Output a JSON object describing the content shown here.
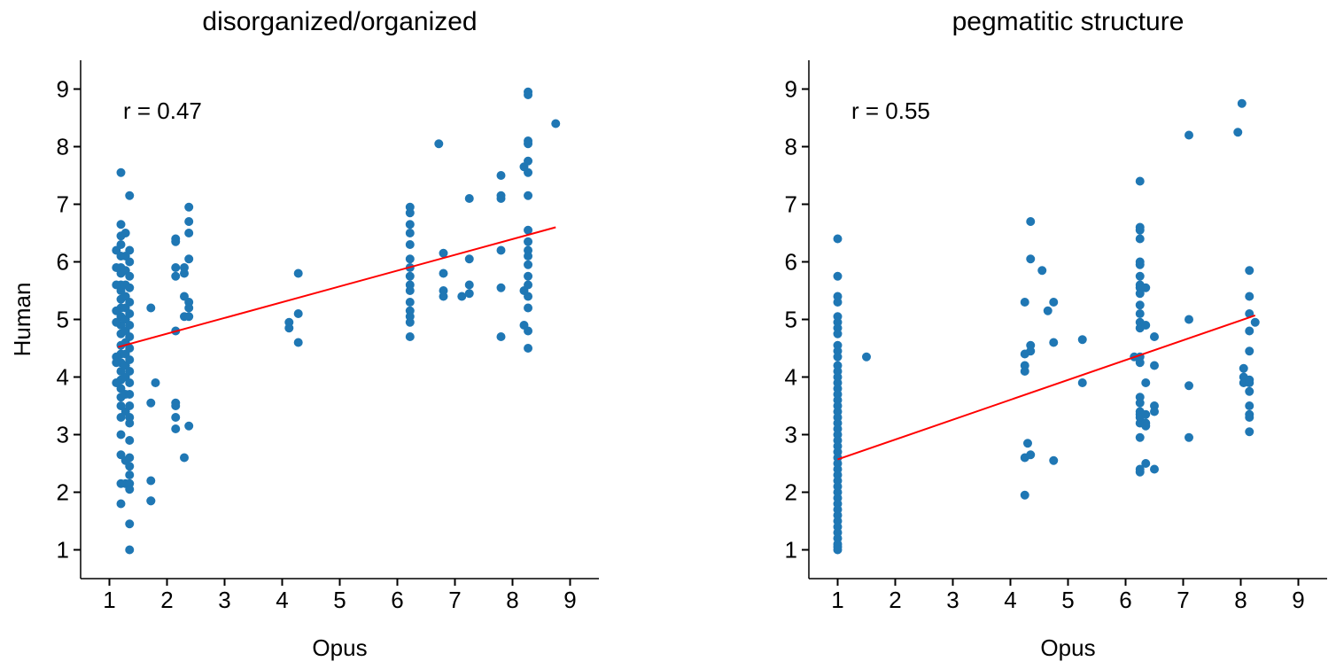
{
  "chart_data": [
    {
      "type": "scatter",
      "title": "disorganized/organized",
      "xlabel": "Opus",
      "ylabel": "Human",
      "xlim": [
        0.5,
        9.5
      ],
      "ylim": [
        0.5,
        9.5
      ],
      "xticks": [
        "1",
        "2",
        "3",
        "4",
        "5",
        "6",
        "7",
        "8",
        "9"
      ],
      "yticks": [
        "1",
        "2",
        "3",
        "4",
        "5",
        "6",
        "7",
        "8",
        "9"
      ],
      "annotation": "r = 0.47",
      "point_color": "#1f77b4",
      "fit_color": "#ff0000",
      "fit_line": {
        "x": [
          1.15,
          8.75
        ],
        "y": [
          4.52,
          6.6
        ]
      },
      "points": [
        [
          1.2,
          7.55
        ],
        [
          1.2,
          6.65
        ],
        [
          1.2,
          6.45
        ],
        [
          1.2,
          6.3
        ],
        [
          1.2,
          6.1
        ],
        [
          1.2,
          5.9
        ],
        [
          1.2,
          5.8
        ],
        [
          1.2,
          5.6
        ],
        [
          1.2,
          5.5
        ],
        [
          1.2,
          5.35
        ],
        [
          1.2,
          5.2
        ],
        [
          1.2,
          5.05
        ],
        [
          1.2,
          4.9
        ],
        [
          1.2,
          4.75
        ],
        [
          1.2,
          4.55
        ],
        [
          1.2,
          4.4
        ],
        [
          1.2,
          4.25
        ],
        [
          1.2,
          4.1
        ],
        [
          1.2,
          3.95
        ],
        [
          1.2,
          3.8
        ],
        [
          1.2,
          3.65
        ],
        [
          1.2,
          3.5
        ],
        [
          1.2,
          3.3
        ],
        [
          1.2,
          3.0
        ],
        [
          1.2,
          2.65
        ],
        [
          1.2,
          2.15
        ],
        [
          1.2,
          1.8
        ],
        [
          1.12,
          6.2
        ],
        [
          1.12,
          5.9
        ],
        [
          1.12,
          5.6
        ],
        [
          1.12,
          5.15
        ],
        [
          1.12,
          4.95
        ],
        [
          1.12,
          4.35
        ],
        [
          1.12,
          4.25
        ],
        [
          1.12,
          3.9
        ],
        [
          1.28,
          6.5
        ],
        [
          1.28,
          6.1
        ],
        [
          1.28,
          5.85
        ],
        [
          1.28,
          5.6
        ],
        [
          1.28,
          5.4
        ],
        [
          1.28,
          5.2
        ],
        [
          1.28,
          5.0
        ],
        [
          1.28,
          4.8
        ],
        [
          1.28,
          4.6
        ],
        [
          1.28,
          4.4
        ],
        [
          1.28,
          4.2
        ],
        [
          1.28,
          4.0
        ],
        [
          1.28,
          3.7
        ],
        [
          1.28,
          3.4
        ],
        [
          1.28,
          2.55
        ],
        [
          1.28,
          2.15
        ],
        [
          1.35,
          7.15
        ],
        [
          1.35,
          6.2
        ],
        [
          1.35,
          6.0
        ],
        [
          1.35,
          5.75
        ],
        [
          1.35,
          5.55
        ],
        [
          1.35,
          5.3
        ],
        [
          1.35,
          5.1
        ],
        [
          1.35,
          4.9
        ],
        [
          1.35,
          4.7
        ],
        [
          1.35,
          4.5
        ],
        [
          1.35,
          4.3
        ],
        [
          1.35,
          4.1
        ],
        [
          1.35,
          3.9
        ],
        [
          1.35,
          3.7
        ],
        [
          1.35,
          3.5
        ],
        [
          1.35,
          3.3
        ],
        [
          1.35,
          3.2
        ],
        [
          1.35,
          2.9
        ],
        [
          1.35,
          2.6
        ],
        [
          1.35,
          2.45
        ],
        [
          1.35,
          2.3
        ],
        [
          1.35,
          2.15
        ],
        [
          1.35,
          2.05
        ],
        [
          1.35,
          1.45
        ],
        [
          1.35,
          1.0
        ],
        [
          1.72,
          5.2
        ],
        [
          1.72,
          3.55
        ],
        [
          1.72,
          2.2
        ],
        [
          1.72,
          1.85
        ],
        [
          1.8,
          3.9
        ],
        [
          1.72,
          1.85
        ],
        [
          2.15,
          6.4
        ],
        [
          2.15,
          6.35
        ],
        [
          2.15,
          5.9
        ],
        [
          2.15,
          5.75
        ],
        [
          2.15,
          4.8
        ],
        [
          2.15,
          3.55
        ],
        [
          2.15,
          3.5
        ],
        [
          2.15,
          3.3
        ],
        [
          2.15,
          3.1
        ],
        [
          2.3,
          5.9
        ],
        [
          2.3,
          5.8
        ],
        [
          2.3,
          5.4
        ],
        [
          2.3,
          5.05
        ],
        [
          2.3,
          2.6
        ],
        [
          2.38,
          6.95
        ],
        [
          2.38,
          6.7
        ],
        [
          2.38,
          6.5
        ],
        [
          2.38,
          6.05
        ],
        [
          2.38,
          5.3
        ],
        [
          2.38,
          5.2
        ],
        [
          2.38,
          5.05
        ],
        [
          2.38,
          3.15
        ],
        [
          4.12,
          4.95
        ],
        [
          4.12,
          4.85
        ],
        [
          4.28,
          5.8
        ],
        [
          4.28,
          5.1
        ],
        [
          4.28,
          4.6
        ],
        [
          6.22,
          6.95
        ],
        [
          6.22,
          6.85
        ],
        [
          6.22,
          6.65
        ],
        [
          6.22,
          6.5
        ],
        [
          6.22,
          6.3
        ],
        [
          6.22,
          6.05
        ],
        [
          6.22,
          5.9
        ],
        [
          6.22,
          5.75
        ],
        [
          6.22,
          5.6
        ],
        [
          6.22,
          5.5
        ],
        [
          6.22,
          5.3
        ],
        [
          6.22,
          5.15
        ],
        [
          6.22,
          5.05
        ],
        [
          6.22,
          4.95
        ],
        [
          6.22,
          4.7
        ],
        [
          6.72,
          8.05
        ],
        [
          6.8,
          6.15
        ],
        [
          6.8,
          5.8
        ],
        [
          6.8,
          5.5
        ],
        [
          6.8,
          5.4
        ],
        [
          7.12,
          5.4
        ],
        [
          7.25,
          7.1
        ],
        [
          7.25,
          6.05
        ],
        [
          7.25,
          5.6
        ],
        [
          7.25,
          5.45
        ],
        [
          7.8,
          7.5
        ],
        [
          7.8,
          7.15
        ],
        [
          7.8,
          7.1
        ],
        [
          7.8,
          6.2
        ],
        [
          7.8,
          5.55
        ],
        [
          7.8,
          4.7
        ],
        [
          8.2,
          7.65
        ],
        [
          8.2,
          5.5
        ],
        [
          8.2,
          4.9
        ],
        [
          8.27,
          8.95
        ],
        [
          8.27,
          8.9
        ],
        [
          8.27,
          8.1
        ],
        [
          8.27,
          8.05
        ],
        [
          8.27,
          7.75
        ],
        [
          8.27,
          7.55
        ],
        [
          8.27,
          7.15
        ],
        [
          8.27,
          6.55
        ],
        [
          8.27,
          6.35
        ],
        [
          8.27,
          6.2
        ],
        [
          8.27,
          6.1
        ],
        [
          8.27,
          5.95
        ],
        [
          8.27,
          5.75
        ],
        [
          8.27,
          5.6
        ],
        [
          8.27,
          5.4
        ],
        [
          8.27,
          5.2
        ],
        [
          8.27,
          4.8
        ],
        [
          8.27,
          4.5
        ],
        [
          8.75,
          8.4
        ]
      ]
    },
    {
      "type": "scatter",
      "title": "pegmatitic structure",
      "xlabel": "Opus",
      "ylabel": "",
      "xlim": [
        0.5,
        9.5
      ],
      "ylim": [
        0.5,
        9.5
      ],
      "xticks": [
        "1",
        "2",
        "3",
        "4",
        "5",
        "6",
        "7",
        "8",
        "9"
      ],
      "yticks": [
        "1",
        "2",
        "3",
        "4",
        "5",
        "6",
        "7",
        "8",
        "9"
      ],
      "annotation": "r = 0.55",
      "point_color": "#1f77b4",
      "fit_color": "#ff0000",
      "fit_line": {
        "x": [
          1.0,
          8.25
        ],
        "y": [
          2.57,
          5.07
        ]
      },
      "points": [
        [
          1.0,
          6.4
        ],
        [
          1.0,
          5.75
        ],
        [
          1.0,
          5.4
        ],
        [
          1.0,
          5.3
        ],
        [
          1.0,
          5.05
        ],
        [
          1.0,
          4.95
        ],
        [
          1.0,
          4.85
        ],
        [
          1.0,
          4.75
        ],
        [
          1.0,
          4.55
        ],
        [
          1.0,
          4.45
        ],
        [
          1.0,
          4.35
        ],
        [
          1.0,
          4.2
        ],
        [
          1.0,
          4.1
        ],
        [
          1.0,
          4.0
        ],
        [
          1.0,
          3.9
        ],
        [
          1.0,
          3.8
        ],
        [
          1.0,
          3.7
        ],
        [
          1.0,
          3.6
        ],
        [
          1.0,
          3.5
        ],
        [
          1.0,
          3.4
        ],
        [
          1.0,
          3.3
        ],
        [
          1.0,
          3.2
        ],
        [
          1.0,
          3.1
        ],
        [
          1.0,
          3.0
        ],
        [
          1.0,
          2.9
        ],
        [
          1.0,
          2.8
        ],
        [
          1.0,
          2.7
        ],
        [
          1.0,
          2.6
        ],
        [
          1.0,
          2.5
        ],
        [
          1.0,
          2.4
        ],
        [
          1.0,
          2.3
        ],
        [
          1.0,
          2.2
        ],
        [
          1.0,
          2.1
        ],
        [
          1.0,
          2.0
        ],
        [
          1.0,
          1.9
        ],
        [
          1.0,
          1.8
        ],
        [
          1.0,
          1.7
        ],
        [
          1.0,
          1.6
        ],
        [
          1.0,
          1.5
        ],
        [
          1.0,
          1.4
        ],
        [
          1.0,
          1.3
        ],
        [
          1.0,
          1.2
        ],
        [
          1.0,
          1.1
        ],
        [
          1.0,
          1.05
        ],
        [
          1.0,
          1.0
        ],
        [
          1.5,
          4.35
        ],
        [
          4.25,
          5.3
        ],
        [
          4.25,
          4.4
        ],
        [
          4.25,
          4.2
        ],
        [
          4.25,
          4.1
        ],
        [
          4.25,
          2.6
        ],
        [
          4.25,
          1.95
        ],
        [
          4.35,
          6.7
        ],
        [
          4.35,
          6.05
        ],
        [
          4.35,
          4.55
        ],
        [
          4.35,
          4.45
        ],
        [
          4.3,
          2.85
        ],
        [
          4.35,
          2.65
        ],
        [
          4.55,
          5.85
        ],
        [
          4.65,
          5.15
        ],
        [
          4.75,
          5.3
        ],
        [
          4.75,
          4.6
        ],
        [
          4.75,
          2.55
        ],
        [
          5.25,
          4.65
        ],
        [
          5.25,
          3.9
        ],
        [
          6.15,
          4.35
        ],
        [
          6.25,
          7.4
        ],
        [
          6.25,
          6.6
        ],
        [
          6.25,
          6.55
        ],
        [
          6.25,
          6.4
        ],
        [
          6.25,
          6.0
        ],
        [
          6.25,
          5.95
        ],
        [
          6.25,
          5.75
        ],
        [
          6.25,
          5.6
        ],
        [
          6.25,
          5.55
        ],
        [
          6.25,
          5.45
        ],
        [
          6.25,
          5.25
        ],
        [
          6.25,
          5.1
        ],
        [
          6.25,
          4.95
        ],
        [
          6.25,
          4.85
        ],
        [
          6.25,
          4.35
        ],
        [
          6.25,
          4.25
        ],
        [
          6.25,
          3.65
        ],
        [
          6.25,
          3.55
        ],
        [
          6.25,
          3.4
        ],
        [
          6.25,
          3.35
        ],
        [
          6.25,
          3.3
        ],
        [
          6.25,
          3.2
        ],
        [
          6.25,
          2.95
        ],
        [
          6.25,
          2.4
        ],
        [
          6.25,
          2.35
        ],
        [
          6.35,
          5.55
        ],
        [
          6.35,
          4.9
        ],
        [
          6.35,
          3.9
        ],
        [
          6.35,
          3.35
        ],
        [
          6.35,
          3.2
        ],
        [
          6.35,
          3.15
        ],
        [
          6.35,
          2.5
        ],
        [
          6.5,
          4.7
        ],
        [
          6.5,
          4.2
        ],
        [
          6.5,
          3.5
        ],
        [
          6.5,
          3.4
        ],
        [
          6.5,
          2.4
        ],
        [
          7.1,
          8.2
        ],
        [
          7.1,
          5.0
        ],
        [
          7.1,
          3.85
        ],
        [
          7.1,
          2.95
        ],
        [
          7.95,
          8.25
        ],
        [
          8.02,
          8.75
        ],
        [
          8.05,
          4.15
        ],
        [
          8.05,
          4.0
        ],
        [
          8.05,
          3.9
        ],
        [
          8.15,
          5.85
        ],
        [
          8.15,
          5.4
        ],
        [
          8.15,
          5.1
        ],
        [
          8.15,
          4.8
        ],
        [
          8.15,
          4.45
        ],
        [
          8.15,
          3.95
        ],
        [
          8.15,
          3.9
        ],
        [
          8.15,
          3.75
        ],
        [
          8.15,
          3.5
        ],
        [
          8.15,
          3.35
        ],
        [
          8.15,
          3.3
        ],
        [
          8.15,
          3.05
        ],
        [
          8.25,
          4.95
        ]
      ]
    }
  ]
}
